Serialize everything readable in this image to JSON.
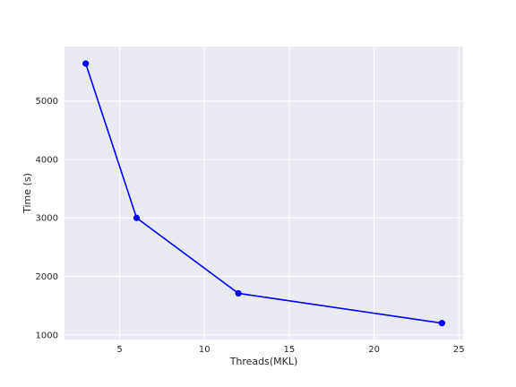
{
  "chart_data": {
    "type": "line",
    "title": "",
    "xlabel": "Threads(MKL)",
    "ylabel": "Time (s)",
    "x": [
      3,
      6,
      12,
      24
    ],
    "series": [
      {
        "values": [
          5640,
          3000,
          1710,
          1200
        ]
      }
    ],
    "xlim": [
      1.75,
      25.25
    ],
    "ylim": [
      920,
      5930
    ],
    "xticks": [
      5,
      10,
      15,
      20,
      25
    ],
    "yticks": [
      1000,
      2000,
      3000,
      4000,
      5000
    ],
    "xtick_labels": [
      "5",
      "10",
      "15",
      "20",
      "25"
    ],
    "ytick_labels": [
      "1000",
      "2000",
      "3000",
      "4000",
      "5000"
    ],
    "grid": true,
    "line_color": "#0000ff",
    "background_color": "#eaeaf2",
    "grid_color": "#ffffff"
  }
}
